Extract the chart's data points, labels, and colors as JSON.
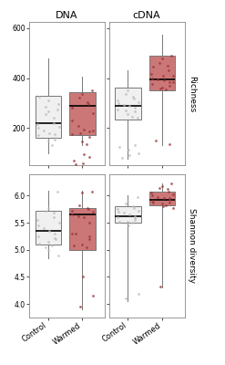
{
  "title_col1": "DNA",
  "title_col2": "cDNA",
  "ylabel_row1": "Richness",
  "ylabel_row2": "Shannon diversity",
  "xlabel_control": "Control",
  "xlabel_warmed": "Warmed",
  "color_control": "#f0f0f0",
  "color_warmed": "#cc7777",
  "edge_color": "#777777",
  "dot_color_control": "#bbbbbb",
  "dot_color_warmed": "#993333",
  "dna_richness_control": {
    "q1": 160,
    "median": 220,
    "q3": 330,
    "whisker_low": 100,
    "whisker_high": 480,
    "jitter": [
      130,
      150,
      160,
      170,
      175,
      180,
      190,
      200,
      205,
      215,
      220,
      240,
      255,
      265,
      275,
      285,
      295,
      310,
      325,
      155
    ]
  },
  "dna_richness_warmed": {
    "q1": 170,
    "median": 290,
    "q3": 345,
    "whisker_low": 130,
    "whisker_high": 405,
    "jitter": [
      135,
      145,
      165,
      175,
      185,
      195,
      210,
      230,
      260,
      280,
      295,
      305,
      320,
      335,
      350,
      180,
      190,
      60,
      70,
      85,
      55,
      95
    ]
  },
  "cdna_richness_control": {
    "q1": 235,
    "median": 290,
    "q3": 360,
    "whisker_low": 75,
    "whisker_high": 430,
    "jitter": [
      245,
      255,
      265,
      275,
      280,
      288,
      292,
      298,
      305,
      312,
      318,
      325,
      335,
      350,
      240,
      270,
      100,
      115,
      125,
      130,
      80,
      90
    ]
  },
  "cdna_richness_warmed": {
    "q1": 350,
    "median": 395,
    "q3": 490,
    "whisker_low": 130,
    "whisker_high": 575,
    "jitter": [
      355,
      362,
      370,
      378,
      385,
      390,
      395,
      400,
      408,
      418,
      430,
      448,
      462,
      478,
      490,
      358,
      382,
      410,
      445,
      135,
      150
    ]
  },
  "dna_shannon_control": {
    "q1": 5.1,
    "median": 5.35,
    "q3": 5.72,
    "whisker_low": 4.85,
    "whisker_high": 6.1,
    "jitter": [
      5.08,
      5.15,
      5.2,
      5.25,
      5.3,
      5.35,
      5.4,
      5.45,
      5.5,
      5.55,
      5.6,
      5.68,
      5.72,
      5.78,
      6.08,
      5.05,
      4.9,
      5.0,
      5.12,
      5.22
    ]
  },
  "dna_shannon_warmed": {
    "q1": 5.0,
    "median": 5.65,
    "q3": 5.78,
    "whisker_low": 3.9,
    "whisker_high": 6.1,
    "jitter": [
      5.05,
      5.1,
      5.2,
      5.3,
      5.5,
      5.6,
      5.62,
      5.65,
      5.7,
      5.72,
      5.75,
      5.78,
      5.82,
      6.05,
      6.08,
      3.95,
      4.15,
      4.5,
      5.08,
      5.25,
      5.3
    ]
  },
  "cdna_shannon_control": {
    "q1": 5.5,
    "median": 5.62,
    "q3": 5.8,
    "whisker_low": 4.05,
    "whisker_high": 6.0,
    "jitter": [
      5.5,
      5.52,
      5.55,
      5.6,
      5.62,
      5.65,
      5.68,
      5.7,
      5.72,
      5.75,
      5.78,
      5.8,
      5.85,
      5.9,
      5.98,
      4.1,
      4.18,
      5.45,
      5.52,
      5.58
    ]
  },
  "cdna_shannon_warmed": {
    "q1": 5.82,
    "median": 5.92,
    "q3": 6.08,
    "whisker_low": 4.3,
    "whisker_high": 6.22,
    "jitter": [
      5.82,
      5.85,
      5.88,
      5.9,
      5.92,
      5.95,
      5.98,
      6.0,
      6.02,
      6.05,
      6.08,
      6.12,
      6.15,
      6.18,
      6.22,
      4.32,
      5.78,
      5.8,
      5.88,
      5.95
    ]
  },
  "richness_ylim": [
    50,
    625
  ],
  "shannon_ylim": [
    3.75,
    6.4
  ],
  "richness_yticks": [
    200,
    400,
    600
  ],
  "shannon_yticks": [
    4.0,
    4.5,
    5.0,
    5.5,
    6.0
  ]
}
